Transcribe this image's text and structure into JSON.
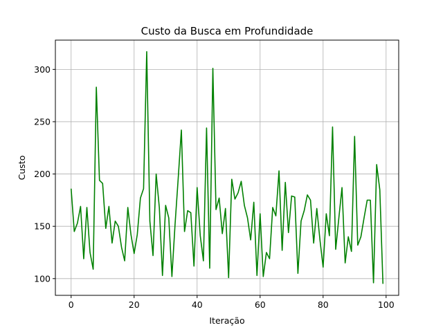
{
  "chart_data": {
    "type": "line",
    "title": "Custo da Busca em Profundidade",
    "xlabel": "Iteração",
    "ylabel": "Custo",
    "xlim": [
      -5,
      104
    ],
    "ylim": [
      84,
      328
    ],
    "xticks": [
      0,
      20,
      40,
      60,
      80,
      100
    ],
    "yticks": [
      100,
      150,
      200,
      250,
      300
    ],
    "grid": true,
    "series": [
      {
        "color": "#008000",
        "x": [
          0,
          1,
          2,
          3,
          4,
          5,
          6,
          7,
          8,
          9,
          10,
          11,
          12,
          13,
          14,
          15,
          16,
          17,
          18,
          19,
          20,
          21,
          22,
          23,
          24,
          25,
          26,
          27,
          28,
          29,
          30,
          31,
          32,
          33,
          34,
          35,
          36,
          37,
          38,
          39,
          40,
          41,
          42,
          43,
          44,
          45,
          46,
          47,
          48,
          49,
          50,
          51,
          52,
          53,
          54,
          55,
          56,
          57,
          58,
          59,
          60,
          61,
          62,
          63,
          64,
          65,
          66,
          67,
          68,
          69,
          70,
          71,
          72,
          73,
          74,
          75,
          76,
          77,
          78,
          79,
          80,
          81,
          82,
          83,
          84,
          85,
          86,
          87,
          88,
          89,
          90,
          91,
          92,
          93,
          94,
          95,
          96,
          97,
          98,
          99
        ],
        "y": [
          186,
          145,
          153,
          169,
          119,
          168,
          125,
          109,
          283,
          194,
          191,
          148,
          169,
          134,
          155,
          150,
          130,
          117,
          168,
          142,
          124,
          142,
          177,
          186,
          317,
          155,
          122,
          200,
          168,
          103,
          170,
          158,
          102,
          152,
          196,
          242,
          145,
          165,
          163,
          112,
          187,
          141,
          117,
          244,
          110,
          301,
          166,
          177,
          143,
          167,
          101,
          195,
          176,
          182,
          193,
          170,
          158,
          137,
          173,
          103,
          162,
          102,
          125,
          119,
          168,
          160,
          203,
          127,
          192,
          144,
          179,
          178,
          105,
          155,
          165,
          180,
          175,
          134,
          167,
          137,
          111,
          162,
          141,
          245,
          128,
          158,
          187,
          115,
          140,
          126,
          236,
          132,
          140,
          158,
          175,
          175,
          96,
          209,
          185,
          95
        ]
      }
    ]
  }
}
